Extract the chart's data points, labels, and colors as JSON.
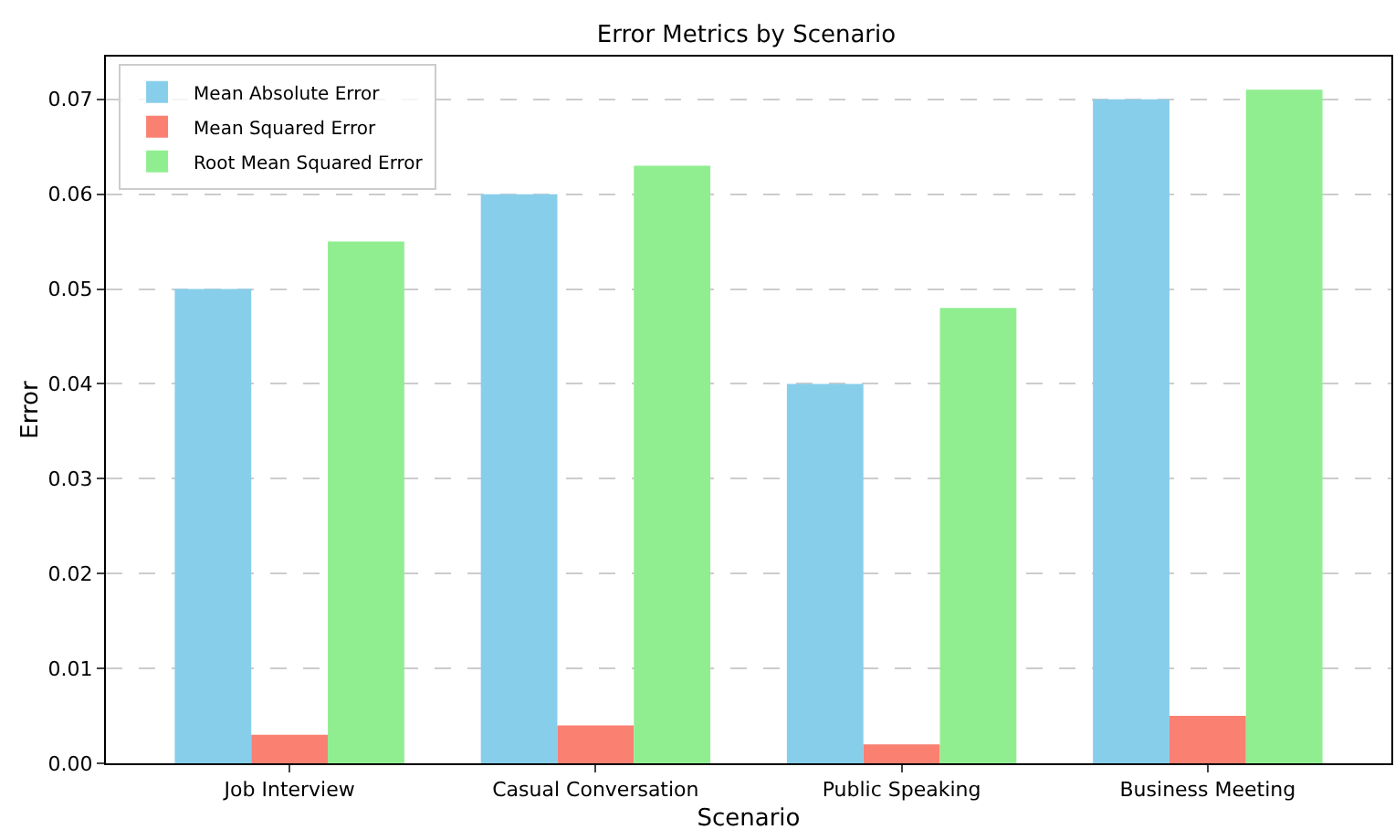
{
  "chart_data": {
    "type": "bar",
    "title": "Error Metrics by Scenario",
    "xlabel": "Scenario",
    "ylabel": "Error",
    "categories": [
      "Job Interview",
      "Casual Conversation",
      "Public Speaking",
      "Business Meeting"
    ],
    "series": [
      {
        "name": "Mean Absolute Error",
        "color": "#87ceeb",
        "values": [
          0.05,
          0.06,
          0.04,
          0.07
        ]
      },
      {
        "name": "Mean Squared Error",
        "color": "#fa8072",
        "values": [
          0.003,
          0.004,
          0.002,
          0.005
        ]
      },
      {
        "name": "Root Mean Squared Error",
        "color": "#90ee90",
        "values": [
          0.055,
          0.063,
          0.048,
          0.071
        ]
      }
    ],
    "ylim": [
      0,
      0.0745
    ],
    "yticks": [
      {
        "value": 0,
        "label": "0.00"
      },
      {
        "value": 0.01,
        "label": "0.01"
      },
      {
        "value": 0.02,
        "label": "0.02"
      },
      {
        "value": 0.03,
        "label": "0.03"
      },
      {
        "value": 0.04,
        "label": "0.04"
      },
      {
        "value": 0.05,
        "label": "0.05"
      },
      {
        "value": 0.06,
        "label": "0.06"
      },
      {
        "value": 0.07,
        "label": "0.07"
      }
    ],
    "grid": "y",
    "legend": "top left"
  }
}
